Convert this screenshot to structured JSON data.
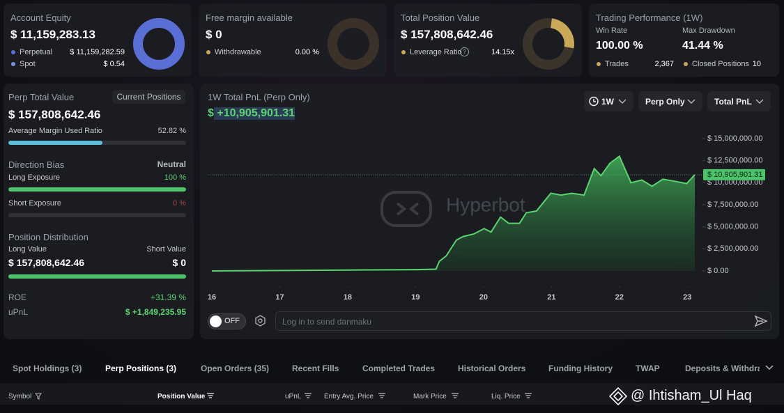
{
  "account_equity": {
    "title": "Account Equity",
    "value": "$ 11,159,283.13",
    "rows": [
      {
        "label": "Perpetual",
        "value": "$ 11,159,282.59"
      },
      {
        "label": "Spot",
        "value": "$ 0.54"
      }
    ]
  },
  "free_margin": {
    "title": "Free margin available",
    "value": "$ 0",
    "rows": [
      {
        "label": "Withdrawable",
        "value": "0.00 %"
      }
    ]
  },
  "total_position": {
    "title": "Total Position Value",
    "value": "$ 157,808,642.46",
    "rows": [
      {
        "label": "Leverage Ratio",
        "value": "14.15x"
      }
    ]
  },
  "performance": {
    "title": "Trading Performance (1W)",
    "stats": [
      {
        "label": "Win Rate",
        "value": "100.00 %"
      },
      {
        "label": "Max Drawdown",
        "value": "41.44 %"
      }
    ],
    "rows": [
      {
        "label": "Trades",
        "value": "2,367"
      },
      {
        "label": "Closed Positions",
        "value": "10"
      }
    ]
  },
  "perp": {
    "title": "Perp Total Value",
    "button": "Current Positions",
    "value": "$ 157,808,642.46",
    "margin_label": "Average Margin Used Ratio",
    "margin_ratio": {
      "value": 52.82,
      "label": "52.82 %"
    },
    "bias_title": "Direction Bias",
    "bias": "Neutral",
    "long_label": "Long Exposure",
    "long_exposure": {
      "value": 100,
      "label": "100 %"
    },
    "short_label": "Short Exposure",
    "short_exposure": {
      "value": 0,
      "label": "0 %"
    },
    "distribution_title": "Position Distribution",
    "long_value_label": "Long Value",
    "short_value_label": "Short Value",
    "long_value": "$ 157,808,642.46",
    "short_value": "$ 0",
    "roe_label": "ROE",
    "roe": "+31.39 %",
    "upnl_label": "uPnL",
    "upnl": "$ +1,849,235.95"
  },
  "pnl_chart": {
    "type": "area",
    "title": "1W Total PnL (Perp Only)",
    "headline": "$ +10,905,901.31",
    "controls": [
      "1W",
      "Perp Only",
      "Total PnL"
    ],
    "watermark": "Hyperbot",
    "color": "#5bd36e",
    "x": [
      16.0,
      17.0,
      18.0,
      19.0,
      19.3,
      19.35,
      19.45,
      19.6,
      19.7,
      19.86,
      20.01,
      20.11,
      20.25,
      20.37,
      20.53,
      20.63,
      20.78,
      20.99,
      21.14,
      21.3,
      21.48,
      21.63,
      21.73,
      21.86,
      22.0,
      22.17,
      22.33,
      22.48,
      22.64,
      22.79,
      22.99,
      23.11
    ],
    "values": [
      0,
      50000,
      100000,
      150000,
      200000,
      1100000,
      1700000,
      3500000,
      3900000,
      4200000,
      4800000,
      4400000,
      6100000,
      5400000,
      5400000,
      6600000,
      6800000,
      8800000,
      8600000,
      8800000,
      8600000,
      11600000,
      10800000,
      12200000,
      13000000,
      10000000,
      10300000,
      9600000,
      10400000,
      10200000,
      9900000,
      10905901.31
    ],
    "current": {
      "value": 10905901.31,
      "label": "$ 10,905,901.31"
    },
    "xlim": [
      16,
      23.11
    ],
    "xticks": [
      16,
      17,
      18,
      19,
      20,
      21,
      22,
      23
    ],
    "ylim": [
      0,
      15000000
    ],
    "yticks": [
      {
        "value": 0,
        "label": "$ 0.00"
      },
      {
        "value": 2500000,
        "label": "$ 2,500,000.00"
      },
      {
        "value": 5000000,
        "label": "$ 5,000,000.00"
      },
      {
        "value": 7500000,
        "label": "$ 7,500,000.00"
      },
      {
        "value": 10000000,
        "label": "$ 10,000,000.00"
      },
      {
        "value": 12500000,
        "label": "$ 12,500,000.00"
      },
      {
        "value": 15000000,
        "label": "$ 15,000,000.00"
      }
    ]
  },
  "danmaku": {
    "toggle": "OFF",
    "placeholder": "Log in to send danmaku"
  },
  "tabs": [
    "Spot Holdings (3)",
    "Perp Positions (3)",
    "Open Orders (35)",
    "Recent Fills",
    "Completed Trades",
    "Historical Orders",
    "Funding History",
    "TWAP",
    "Deposits & Withdrawals"
  ],
  "table": {
    "headers": [
      "Symbol",
      "Position Value",
      "uPnL",
      "Entry Avg. Price",
      "Mark Price",
      "Liq. Price"
    ]
  },
  "watermark": "@ Ihtisham_Ul Haq"
}
